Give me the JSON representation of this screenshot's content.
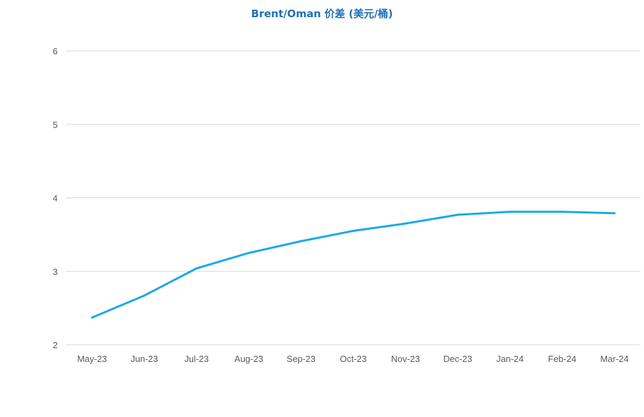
{
  "chart_data": {
    "type": "line",
    "title": "Brent/Oman 价差 (美元/桶)",
    "xlabel": "",
    "ylabel": "",
    "categories": [
      "May-23",
      "Jun-23",
      "Jul-23",
      "Aug-23",
      "Sep-23",
      "Oct-23",
      "Nov-23",
      "Dec-23",
      "Jan-24",
      "Feb-24",
      "Mar-24"
    ],
    "ylim": [
      2,
      6
    ],
    "yticks": [
      2,
      3,
      4,
      5,
      6
    ],
    "grid": true,
    "legend": "none",
    "series": [
      {
        "values": [
          2.37,
          2.67,
          3.04,
          3.25,
          3.41,
          3.55,
          3.65,
          3.77,
          3.81,
          3.81,
          3.79
        ]
      }
    ],
    "colors": {
      "line": "#1aa9e6",
      "grid": "#d9d9d9",
      "axis": "#d9d9d9",
      "title": "#1f6fb4"
    }
  }
}
